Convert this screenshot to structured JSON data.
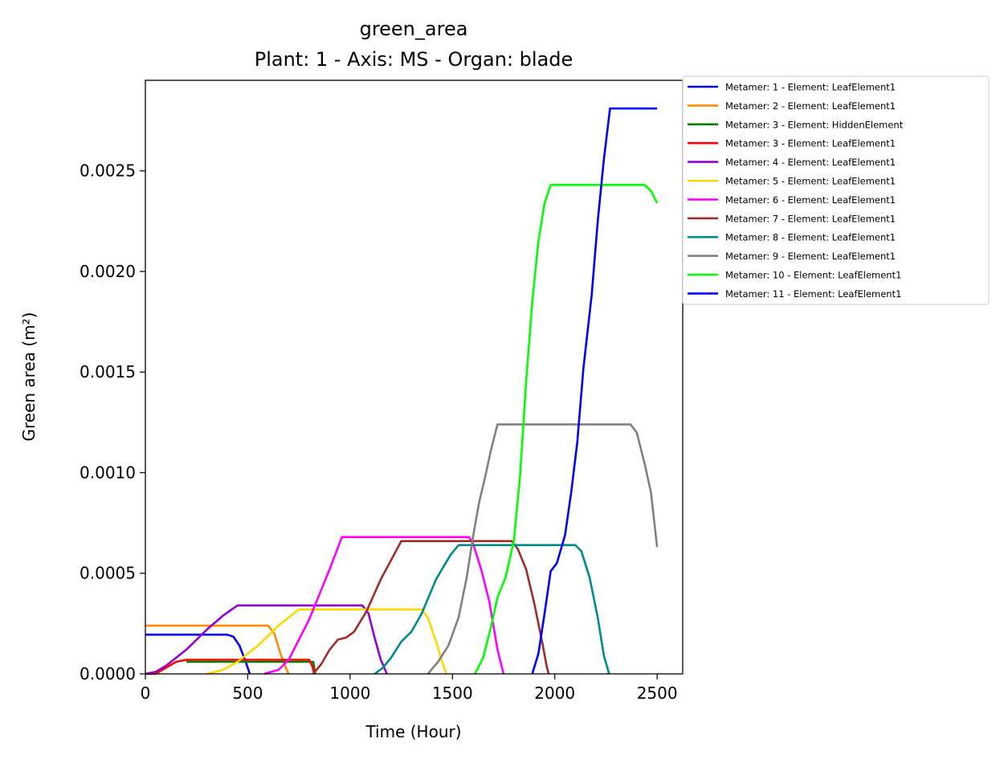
{
  "chart_data": {
    "type": "line",
    "title": "green_area",
    "subtitle": "Plant: 1 - Axis: MS - Organ: blade",
    "xlabel": "Time (Hour)",
    "ylabel": "Green area (m²)",
    "xlim": [
      0,
      2625
    ],
    "ylim": [
      0,
      0.00295
    ],
    "xticks": [
      0,
      500,
      1000,
      1500,
      2000,
      2500
    ],
    "xtick_labels": [
      "0",
      "500",
      "1000",
      "1500",
      "2000",
      "2500"
    ],
    "yticks": [
      0,
      0.0005,
      0.001,
      0.0015,
      0.002,
      0.0025
    ],
    "ytick_labels": [
      "0.0000",
      "0.0005",
      "0.0010",
      "0.0015",
      "0.0020",
      "0.0025"
    ],
    "grid": false,
    "legend_position": "outside-right-top",
    "series": [
      {
        "name": "Metamer: 1 - Element: LeafElement1",
        "color": "#0000ff",
        "points": [
          [
            0,
            0.000195
          ],
          [
            100,
            0.000195
          ],
          [
            200,
            0.000195
          ],
          [
            300,
            0.000195
          ],
          [
            400,
            0.000195
          ],
          [
            430,
            0.000185
          ],
          [
            460,
            0.00014
          ],
          [
            490,
            6e-05
          ],
          [
            510,
            0
          ]
        ]
      },
      {
        "name": "Metamer: 2 - Element: LeafElement1",
        "color": "#ff8c00",
        "points": [
          [
            0,
            0.00024
          ],
          [
            200,
            0.00024
          ],
          [
            400,
            0.00024
          ],
          [
            560,
            0.00024
          ],
          [
            600,
            0.00024
          ],
          [
            630,
            0.0002
          ],
          [
            660,
            0.0001
          ],
          [
            690,
            2e-05
          ],
          [
            700,
            0
          ]
        ]
      },
      {
        "name": "Metamer: 3 - Element: HiddenElement",
        "color": "#008000",
        "points": [
          [
            200,
            6e-05
          ],
          [
            300,
            6e-05
          ],
          [
            500,
            6e-05
          ],
          [
            700,
            6e-05
          ],
          [
            800,
            6e-05
          ],
          [
            820,
            6e-05
          ],
          [
            830,
            0
          ]
        ]
      },
      {
        "name": "Metamer: 3 - Element: LeafElement1",
        "color": "#ff0000",
        "points": [
          [
            0,
            0
          ],
          [
            50,
            0
          ],
          [
            100,
            3e-05
          ],
          [
            150,
            6e-05
          ],
          [
            200,
            7e-05
          ],
          [
            300,
            7e-05
          ],
          [
            500,
            7e-05
          ],
          [
            700,
            7e-05
          ],
          [
            800,
            7e-05
          ],
          [
            815,
            4e-05
          ],
          [
            825,
            0
          ]
        ]
      },
      {
        "name": "Metamer: 4 - Element: LeafElement1",
        "color": "#9400d3",
        "points": [
          [
            0,
            0
          ],
          [
            50,
            1e-05
          ],
          [
            100,
            4e-05
          ],
          [
            200,
            0.00012
          ],
          [
            300,
            0.00022
          ],
          [
            380,
            0.00029
          ],
          [
            450,
            0.00034
          ],
          [
            600,
            0.00034
          ],
          [
            800,
            0.00034
          ],
          [
            1000,
            0.00034
          ],
          [
            1060,
            0.00034
          ],
          [
            1090,
            0.0003
          ],
          [
            1120,
            0.00018
          ],
          [
            1150,
            7e-05
          ],
          [
            1180,
            0
          ]
        ]
      },
      {
        "name": "Metamer: 5 - Element: LeafElement1",
        "color": "#ffd700",
        "points": [
          [
            300,
            0
          ],
          [
            380,
            2e-05
          ],
          [
            450,
            6e-05
          ],
          [
            550,
            0.00014
          ],
          [
            650,
            0.00024
          ],
          [
            750,
            0.00032
          ],
          [
            900,
            0.00032
          ],
          [
            1100,
            0.00032
          ],
          [
            1300,
            0.00032
          ],
          [
            1350,
            0.00032
          ],
          [
            1380,
            0.00028
          ],
          [
            1420,
            0.00016
          ],
          [
            1450,
            6e-05
          ],
          [
            1470,
            0
          ]
        ]
      },
      {
        "name": "Metamer: 6 - Element: LeafElement1",
        "color": "#ff00ff",
        "points": [
          [
            580,
            0
          ],
          [
            650,
            2e-05
          ],
          [
            700,
            7e-05
          ],
          [
            800,
            0.00027
          ],
          [
            900,
            0.00052
          ],
          [
            960,
            0.00068
          ],
          [
            1100,
            0.00068
          ],
          [
            1300,
            0.00068
          ],
          [
            1500,
            0.00068
          ],
          [
            1580,
            0.00068
          ],
          [
            1600,
            0.00065
          ],
          [
            1640,
            0.00052
          ],
          [
            1680,
            0.00036
          ],
          [
            1720,
            0.00012
          ],
          [
            1750,
            0
          ]
        ]
      },
      {
        "name": "Metamer: 7 - Element: LeafElement1",
        "color": "#a52a2a",
        "points": [
          [
            820,
            0
          ],
          [
            860,
            5e-05
          ],
          [
            900,
            0.00012
          ],
          [
            940,
            0.00017
          ],
          [
            980,
            0.00018
          ],
          [
            1020,
            0.00021
          ],
          [
            1080,
            0.00031
          ],
          [
            1150,
            0.00047
          ],
          [
            1250,
            0.00066
          ],
          [
            1400,
            0.00066
          ],
          [
            1600,
            0.00066
          ],
          [
            1790,
            0.00066
          ],
          [
            1820,
            0.00062
          ],
          [
            1860,
            0.00052
          ],
          [
            1900,
            0.00035
          ],
          [
            1940,
            0.00015
          ],
          [
            1960,
            4e-05
          ],
          [
            1970,
            0
          ]
        ]
      },
      {
        "name": "Metamer: 8 - Element: LeafElement1",
        "color": "#008b8b",
        "points": [
          [
            1120,
            0
          ],
          [
            1160,
            3e-05
          ],
          [
            1200,
            8e-05
          ],
          [
            1250,
            0.00016
          ],
          [
            1300,
            0.00021
          ],
          [
            1350,
            0.0003
          ],
          [
            1420,
            0.00047
          ],
          [
            1490,
            0.00059
          ],
          [
            1530,
            0.00064
          ],
          [
            1700,
            0.00064
          ],
          [
            1900,
            0.00064
          ],
          [
            2100,
            0.00064
          ],
          [
            2130,
            0.00061
          ],
          [
            2170,
            0.00048
          ],
          [
            2210,
            0.00028
          ],
          [
            2240,
            9e-05
          ],
          [
            2265,
            0
          ]
        ]
      },
      {
        "name": "Metamer: 9 - Element: LeafElement1",
        "color": "#808080",
        "points": [
          [
            1380,
            0
          ],
          [
            1430,
            6e-05
          ],
          [
            1480,
            0.00014
          ],
          [
            1530,
            0.00028
          ],
          [
            1570,
            0.00048
          ],
          [
            1600,
            0.00068
          ],
          [
            1630,
            0.00085
          ],
          [
            1660,
            0.00098
          ],
          [
            1690,
            0.00112
          ],
          [
            1720,
            0.00124
          ],
          [
            1900,
            0.00124
          ],
          [
            2100,
            0.00124
          ],
          [
            2370,
            0.00124
          ],
          [
            2400,
            0.0012
          ],
          [
            2440,
            0.00104
          ],
          [
            2470,
            0.0009
          ],
          [
            2490,
            0.00072
          ],
          [
            2500,
            0.00063
          ]
        ]
      },
      {
        "name": "Metamer: 10 - Element: LeafElement1",
        "color": "#00ff00",
        "points": [
          [
            1610,
            0
          ],
          [
            1650,
            8e-05
          ],
          [
            1690,
            0.00024
          ],
          [
            1720,
            0.00038
          ],
          [
            1760,
            0.00048
          ],
          [
            1800,
            0.00066
          ],
          [
            1830,
            0.00098
          ],
          [
            1860,
            0.00145
          ],
          [
            1890,
            0.00185
          ],
          [
            1920,
            0.00215
          ],
          [
            1950,
            0.00234
          ],
          [
            1980,
            0.00243
          ],
          [
            2100,
            0.00243
          ],
          [
            2300,
            0.00243
          ],
          [
            2440,
            0.00243
          ],
          [
            2470,
            0.0024
          ],
          [
            2500,
            0.00234
          ]
        ]
      },
      {
        "name": "Metamer: 11 - Element: LeafElement1",
        "color": "#0000ff",
        "points": [
          [
            1890,
            0
          ],
          [
            1920,
            0.0001
          ],
          [
            1950,
            0.0003
          ],
          [
            1980,
            0.00051
          ],
          [
            2010,
            0.00055
          ],
          [
            2050,
            0.00069
          ],
          [
            2080,
            0.0009
          ],
          [
            2110,
            0.00115
          ],
          [
            2140,
            0.00152
          ],
          [
            2180,
            0.00188
          ],
          [
            2210,
            0.00225
          ],
          [
            2240,
            0.00256
          ],
          [
            2270,
            0.00281
          ],
          [
            2350,
            0.00281
          ],
          [
            2450,
            0.00281
          ],
          [
            2500,
            0.00281
          ]
        ]
      }
    ]
  }
}
